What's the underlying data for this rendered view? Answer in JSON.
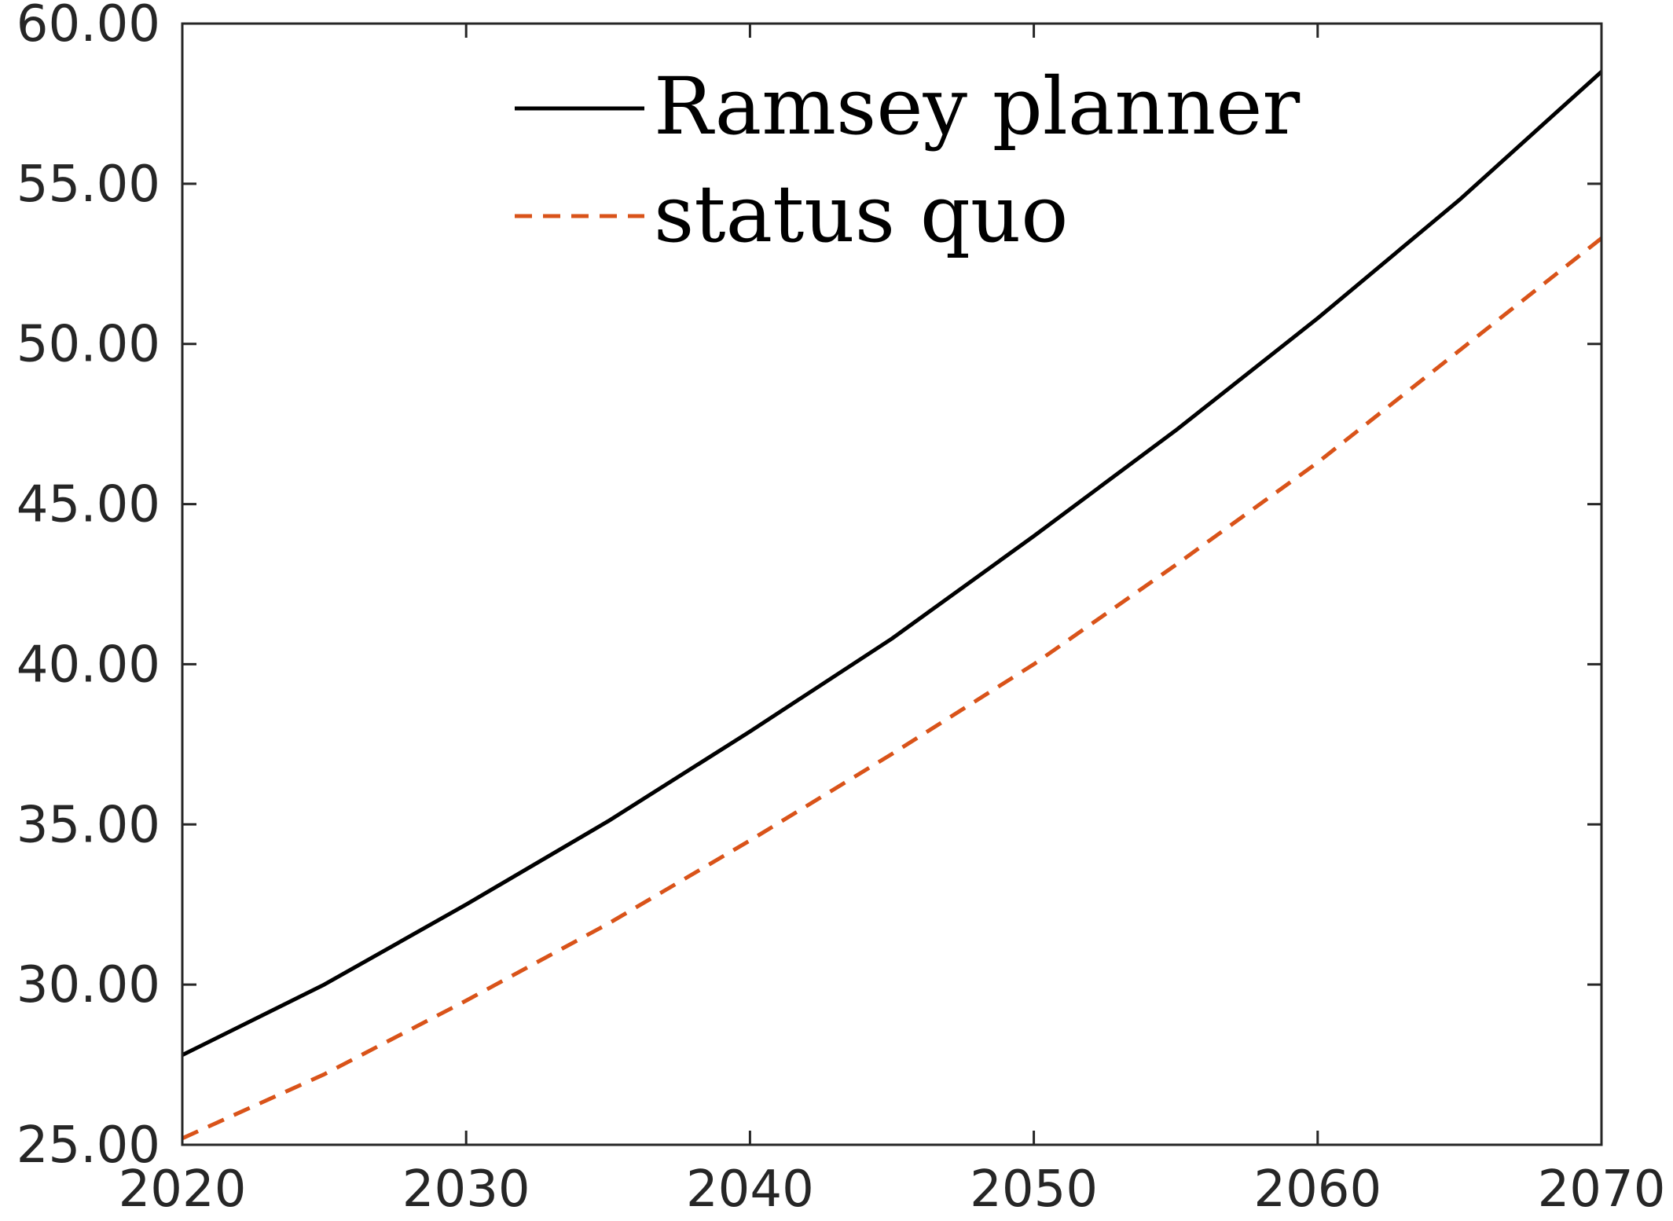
{
  "chart_data": {
    "type": "line",
    "title": "",
    "xlabel": "",
    "ylabel": "",
    "xlim": [
      2020,
      2070
    ],
    "ylim": [
      25,
      60
    ],
    "x_ticks": [
      2020,
      2030,
      2040,
      2050,
      2060,
      2070
    ],
    "x_tick_labels": [
      "2020",
      "2030",
      "2040",
      "2050",
      "2060",
      "2070"
    ],
    "y_ticks": [
      25,
      30,
      35,
      40,
      45,
      50,
      55,
      60
    ],
    "y_tick_labels": [
      "25.00",
      "30.00",
      "35.00",
      "40.00",
      "45.00",
      "50.00",
      "55.00",
      "60.00"
    ],
    "grid": false,
    "legend_position": "top-center",
    "x": [
      2020,
      2025,
      2030,
      2035,
      2040,
      2045,
      2050,
      2055,
      2060,
      2065,
      2070
    ],
    "series": [
      {
        "name": "Ramsey planner",
        "style": "solid",
        "color": "#000000",
        "values": [
          27.8,
          30.0,
          32.5,
          35.1,
          37.9,
          40.8,
          44.0,
          47.3,
          50.8,
          54.5,
          58.5
        ]
      },
      {
        "name": "status quo",
        "style": "dashed",
        "color": "#D95319",
        "values": [
          25.2,
          27.2,
          29.5,
          31.9,
          34.5,
          37.2,
          40.0,
          43.1,
          46.3,
          49.8,
          53.3
        ]
      }
    ]
  }
}
